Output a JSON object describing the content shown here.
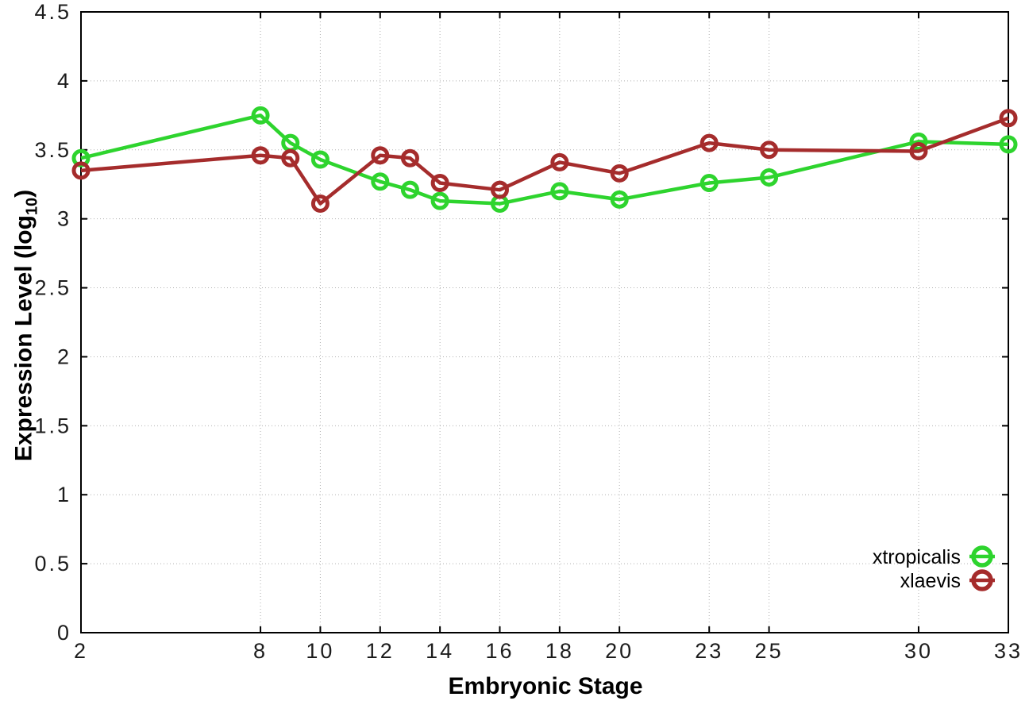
{
  "chart_data": {
    "type": "line",
    "title": "",
    "xlabel": "Embryonic Stage",
    "ylabel": "Expression Level (log10)",
    "ylabel_parts": {
      "prefix": "Expression Level (log",
      "sub": "10",
      "suffix": ")"
    },
    "xlim": [
      2,
      33
    ],
    "ylim": [
      0,
      4.5
    ],
    "xticks": [
      2,
      8,
      10,
      12,
      14,
      16,
      18,
      20,
      23,
      25,
      30,
      33
    ],
    "xtick_labels": [
      "2",
      "8",
      "10",
      "12",
      "14",
      "16",
      "18",
      "20",
      "23",
      "25",
      "30",
      "33"
    ],
    "yticks": [
      0,
      0.5,
      1,
      1.5,
      2,
      2.5,
      3,
      3.5,
      4,
      4.5
    ],
    "ytick_labels": [
      "0",
      "0.5",
      "1",
      "1.5",
      "2",
      "2.5",
      "3",
      "3.5",
      "4",
      "4.5"
    ],
    "grid": true,
    "legend_position": "inside-bottom-right",
    "x": [
      2,
      8,
      9,
      10,
      12,
      13,
      14,
      16,
      18,
      20,
      23,
      25,
      30,
      33
    ],
    "series": [
      {
        "name": "xtropicalis",
        "color": "#2ed42e",
        "marker": "open-circle",
        "values": [
          3.44,
          3.75,
          3.55,
          3.43,
          3.27,
          3.21,
          3.13,
          3.11,
          3.2,
          3.14,
          3.26,
          3.3,
          3.56,
          3.54
        ]
      },
      {
        "name": "xlaevis",
        "color": "#a52c2c",
        "marker": "open-circle",
        "values": [
          3.35,
          3.46,
          3.44,
          3.11,
          3.46,
          3.44,
          3.26,
          3.21,
          3.41,
          3.33,
          3.55,
          3.5,
          3.49,
          3.73
        ]
      }
    ],
    "style": {
      "grid_color": "#b0b0b0",
      "border_color": "#000000",
      "tick_label_color": "#1c1c1c",
      "line_width": 4.5,
      "marker_radius": 9,
      "marker_stroke": 5,
      "legend_marker_radius": 11,
      "legend_marker_stroke": 5.5
    }
  }
}
